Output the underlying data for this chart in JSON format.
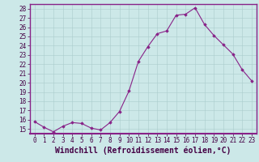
{
  "x": [
    0,
    1,
    2,
    3,
    4,
    5,
    6,
    7,
    8,
    9,
    10,
    11,
    12,
    13,
    14,
    15,
    16,
    17,
    18,
    19,
    20,
    21,
    22,
    23
  ],
  "y": [
    15.8,
    15.2,
    14.7,
    15.3,
    15.7,
    15.6,
    15.1,
    14.9,
    15.7,
    16.9,
    19.1,
    22.3,
    23.9,
    25.3,
    25.6,
    27.3,
    27.4,
    28.1,
    26.3,
    25.1,
    24.1,
    23.1,
    21.4,
    20.2
  ],
  "line_color": "#882288",
  "marker": "D",
  "marker_size": 1.8,
  "bg_color": "#cce8e8",
  "grid_color": "#aacccc",
  "xlabel": "Windchill (Refroidissement éolien,°C)",
  "xlabel_fontsize": 7.0,
  "ylim": [
    14.5,
    28.5
  ],
  "xlim": [
    -0.5,
    23.5
  ],
  "yticks": [
    15,
    16,
    17,
    18,
    19,
    20,
    21,
    22,
    23,
    24,
    25,
    26,
    27,
    28
  ],
  "xticks": [
    0,
    1,
    2,
    3,
    4,
    5,
    6,
    7,
    8,
    9,
    10,
    11,
    12,
    13,
    14,
    15,
    16,
    17,
    18,
    19,
    20,
    21,
    22,
    23
  ],
  "tick_fontsize": 5.5,
  "spine_color": "#882288",
  "fig_bg": "#cce8e8"
}
